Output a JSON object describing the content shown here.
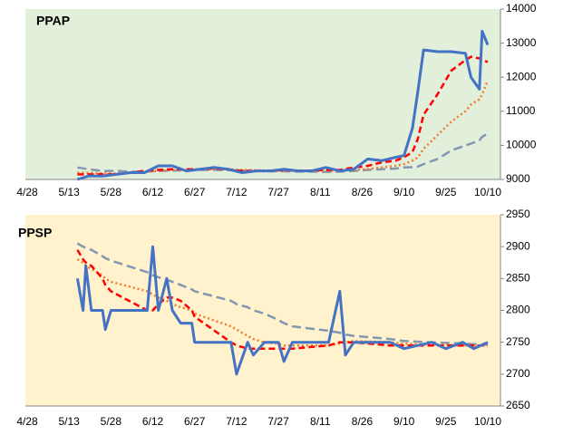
{
  "chart_data": [
    {
      "type": "line",
      "title": "PPAP",
      "background": "#e2efda",
      "x": [
        "5/16",
        "5/20",
        "5/25",
        "5/30",
        "6/4",
        "6/9",
        "6/14",
        "6/19",
        "6/24",
        "6/29",
        "7/4",
        "7/9",
        "7/14",
        "7/19",
        "7/24",
        "7/29",
        "8/3",
        "8/8",
        "8/13",
        "8/18",
        "8/23",
        "8/28",
        "9/2",
        "9/7",
        "9/10",
        "9/13",
        "9/15",
        "9/17",
        "9/22",
        "9/27",
        "10/2",
        "10/4",
        "10/7",
        "10/8",
        "10/10"
      ],
      "xlim": [
        "4/28",
        "10/10"
      ],
      "xticks": [
        "4/28",
        "5/13",
        "5/28",
        "6/12",
        "6/27",
        "7/12",
        "7/27",
        "8/11",
        "8/26",
        "9/10",
        "9/25",
        "10/10"
      ],
      "ylim": [
        9000,
        14000
      ],
      "yticks": [
        9000,
        10000,
        11000,
        12000,
        13000,
        14000
      ],
      "series": [
        {
          "color": "#4472c4",
          "style": "solid",
          "values": [
            9000,
            9100,
            9100,
            9150,
            9200,
            9200,
            9400,
            9400,
            9250,
            9300,
            9350,
            9300,
            9200,
            9250,
            9250,
            9300,
            9250,
            9250,
            9350,
            9250,
            9300,
            9600,
            9550,
            9650,
            9700,
            10500,
            11600,
            12800,
            12750,
            12750,
            12700,
            12000,
            11650,
            13350,
            12950
          ]
        },
        {
          "color": "#ff0000",
          "style": "dashed",
          "values": [
            9150,
            9150,
            9150,
            9150,
            9200,
            9250,
            9280,
            9300,
            9300,
            9300,
            9320,
            9300,
            9250,
            9250,
            9250,
            9270,
            9260,
            9260,
            9280,
            9280,
            9350,
            9400,
            9500,
            9550,
            9650,
            9800,
            10200,
            10900,
            11500,
            12200,
            12500,
            12600,
            12550,
            12500,
            12450
          ]
        },
        {
          "color": "#ed7d31",
          "style": "dotted",
          "values": [
            9200,
            9200,
            9180,
            9180,
            9200,
            9220,
            9250,
            9270,
            9290,
            9300,
            9300,
            9290,
            9280,
            9270,
            9260,
            9260,
            9250,
            9250,
            9250,
            9260,
            9280,
            9300,
            9350,
            9400,
            9450,
            9550,
            9650,
            9900,
            10300,
            10700,
            11000,
            11200,
            11350,
            11500,
            11900
          ]
        },
        {
          "color": "#8497b0",
          "style": "longdash",
          "values": [
            9350,
            9300,
            9250,
            9250,
            9230,
            9230,
            9250,
            9260,
            9270,
            9280,
            9280,
            9270,
            9260,
            9250,
            9240,
            9240,
            9230,
            9230,
            9220,
            9230,
            9250,
            9280,
            9300,
            9320,
            9350,
            9360,
            9380,
            9450,
            9600,
            9850,
            10000,
            10050,
            10150,
            10250,
            10350
          ]
        }
      ]
    },
    {
      "type": "line",
      "title": "PPSP",
      "background": "#fff2cc",
      "x": [
        "5/16",
        "5/18",
        "5/19",
        "5/21",
        "5/25",
        "5/26",
        "5/28",
        "6/10",
        "6/12",
        "6/14",
        "6/17",
        "6/19",
        "6/22",
        "6/26",
        "6/27",
        "7/10",
        "7/12",
        "7/16",
        "7/18",
        "7/22",
        "7/27",
        "7/29",
        "8/1",
        "8/14",
        "8/18",
        "8/20",
        "8/23",
        "9/5",
        "9/10",
        "9/20",
        "9/25",
        "10/1",
        "10/5",
        "10/10"
      ],
      "xlim": [
        "4/28",
        "10/10"
      ],
      "xticks": [
        "4/28",
        "5/13",
        "5/28",
        "6/12",
        "6/27",
        "7/12",
        "7/27",
        "8/11",
        "8/26",
        "9/10",
        "9/25",
        "10/10"
      ],
      "ylim": [
        2650,
        2950
      ],
      "yticks": [
        2650,
        2700,
        2750,
        2800,
        2850,
        2900,
        2950
      ],
      "series": [
        {
          "color": "#4472c4",
          "style": "solid",
          "values": [
            2850,
            2800,
            2870,
            2800,
            2800,
            2770,
            2800,
            2800,
            2900,
            2800,
            2850,
            2800,
            2780,
            2780,
            2750,
            2750,
            2700,
            2750,
            2730,
            2750,
            2750,
            2720,
            2750,
            2750,
            2830,
            2730,
            2750,
            2750,
            2740,
            2750,
            2740,
            2750,
            2740,
            2750
          ]
        },
        {
          "color": "#ff0000",
          "style": "dashed",
          "values": [
            2895,
            2880,
            2875,
            2870,
            2850,
            2840,
            2830,
            2800,
            2800,
            2810,
            2820,
            2820,
            2815,
            2800,
            2790,
            2750,
            2745,
            2740,
            2740,
            2740,
            2740,
            2740,
            2740,
            2745,
            2750,
            2750,
            2750,
            2745,
            2745,
            2745,
            2745,
            2745,
            2745,
            2745
          ]
        },
        {
          "color": "#ed7d31",
          "style": "dotted",
          "values": [
            2880,
            2875,
            2870,
            2865,
            2855,
            2850,
            2845,
            2830,
            2825,
            2820,
            2815,
            2810,
            2805,
            2800,
            2795,
            2775,
            2770,
            2760,
            2755,
            2750,
            2748,
            2745,
            2745,
            2745,
            2748,
            2750,
            2752,
            2750,
            2748,
            2746,
            2746,
            2745,
            2745,
            2745
          ]
        },
        {
          "color": "#8497b0",
          "style": "longdash",
          "values": [
            2905,
            2900,
            2898,
            2895,
            2885,
            2882,
            2878,
            2860,
            2855,
            2852,
            2848,
            2845,
            2840,
            2833,
            2830,
            2815,
            2810,
            2805,
            2800,
            2795,
            2785,
            2780,
            2775,
            2768,
            2765,
            2762,
            2760,
            2755,
            2752,
            2750,
            2749,
            2748,
            2747,
            2746
          ]
        }
      ]
    }
  ]
}
